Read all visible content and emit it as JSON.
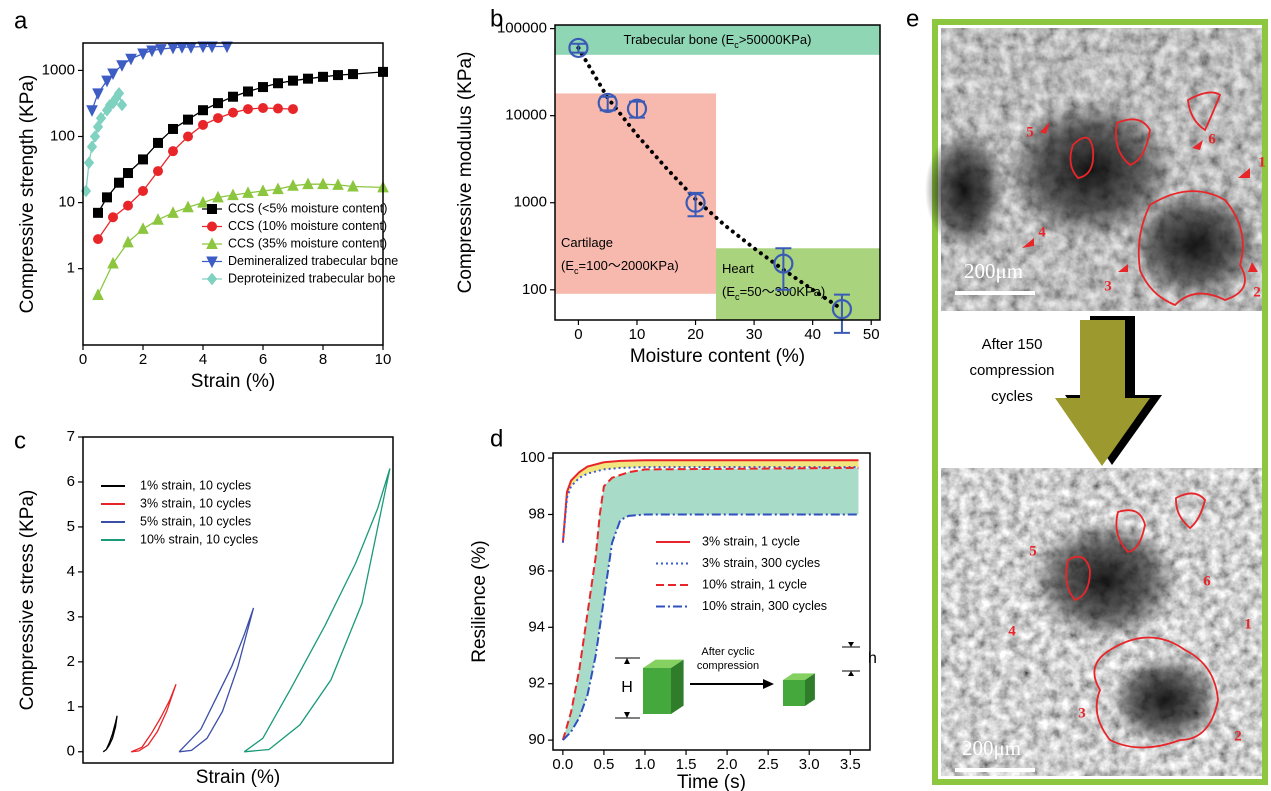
{
  "chart_data": [
    {
      "panel_label": "a",
      "type": "line",
      "x_label": "Strain (%)",
      "y_label": "Compressive strength (KPa)",
      "y_scale": "log",
      "xlim": [
        0,
        10
      ],
      "ylim": [
        0.07,
        2600
      ],
      "xticks": [
        0,
        2,
        4,
        6,
        8,
        10
      ],
      "yticks": [
        1,
        10,
        100,
        1000
      ],
      "legend": "lower right",
      "series": [
        {
          "name": "CCS (<5% moisture content)",
          "color": "#000000",
          "marker": "square",
          "x": [
            0.5,
            0.8,
            1.2,
            1.5,
            2,
            2.5,
            3,
            3.5,
            4,
            4.5,
            5,
            5.5,
            6,
            6.5,
            7,
            7.5,
            8,
            8.5,
            9,
            10
          ],
          "values": [
            7,
            12,
            20,
            28,
            45,
            80,
            130,
            180,
            250,
            320,
            400,
            480,
            560,
            640,
            700,
            750,
            800,
            850,
            880,
            950
          ]
        },
        {
          "name": "CCS (10% moisture content)",
          "color": "#e8262a",
          "marker": "circle",
          "x": [
            0.5,
            1,
            1.5,
            2,
            2.5,
            3,
            3.5,
            4,
            4.5,
            5,
            5.5,
            6,
            6.5,
            7
          ],
          "values": [
            2.8,
            6,
            9,
            15,
            30,
            60,
            100,
            150,
            190,
            230,
            260,
            270,
            265,
            260
          ]
        },
        {
          "name": "CCS (35% moisture content)",
          "color": "#8cc63f",
          "marker": "triangle",
          "x": [
            0.5,
            1,
            1.5,
            2,
            2.5,
            3,
            3.5,
            4,
            4.5,
            5,
            5.5,
            6,
            6.5,
            7,
            7.5,
            8,
            8.5,
            9,
            10
          ],
          "values": [
            0.4,
            1.2,
            2.5,
            4,
            5.5,
            7,
            8.5,
            10,
            12,
            13,
            14,
            15,
            16,
            18,
            19,
            19,
            18.5,
            17.5,
            17
          ]
        },
        {
          "name": "Demineralized trabecular bone",
          "color": "#3d5cc4",
          "marker": "triangle-down",
          "x": [
            0.3,
            0.5,
            0.8,
            1,
            1.3,
            1.6,
            2,
            2.3,
            2.6,
            3,
            3.3,
            3.6,
            4,
            4.3,
            4.8
          ],
          "values": [
            250,
            450,
            700,
            900,
            1200,
            1500,
            1800,
            2000,
            2100,
            2200,
            2250,
            2250,
            2300,
            2300,
            2300
          ]
        },
        {
          "name": "Deproteinized trabecular bone",
          "color": "#7fd1c0",
          "marker": "diamond",
          "x": [
            0.1,
            0.2,
            0.3,
            0.4,
            0.5,
            0.6,
            0.8,
            0.9,
            1,
            1.1,
            1.2,
            1.3
          ],
          "values": [
            15,
            40,
            70,
            100,
            140,
            190,
            250,
            300,
            320,
            380,
            450,
            300
          ]
        }
      ]
    },
    {
      "panel_label": "b",
      "type": "errorbar",
      "x_label": "Moisture content (%)",
      "y_label": "Compressive modulus (KPa)",
      "y_scale": "log",
      "xlim": [
        -4,
        51.5
      ],
      "ylim": [
        45,
        110000
      ],
      "xticks": [
        0,
        10,
        20,
        30,
        40,
        50
      ],
      "yticks": [
        100,
        1000,
        10000,
        100000
      ],
      "color": "#3a5bb5",
      "x": [
        0,
        5,
        10,
        20,
        35,
        45
      ],
      "values": [
        60000,
        14000,
        12000,
        1000,
        200,
        60
      ],
      "errors": [
        7000,
        2500,
        2500,
        300,
        100,
        28
      ],
      "fit": {
        "x": [
          0,
          5,
          10,
          15,
          20,
          25,
          30,
          35,
          40,
          45
        ],
        "values": [
          60000,
          16000,
          6000,
          2500,
          1100,
          550,
          300,
          170,
          100,
          60
        ]
      },
      "regions": [
        {
          "label_lines": [
            [
              "Trabecular bone (E",
              "c",
              ">50000KPa)"
            ]
          ],
          "xlim": [
            -4,
            51.5
          ],
          "ylim": [
            50000,
            110000
          ],
          "color": "#8fd6b5"
        },
        {
          "label_lines": [
            [
              "Cartilage"
            ],
            [
              "(E",
              "c",
              "=100～2000KPa)"
            ]
          ],
          "xlim": [
            -4,
            23.5
          ],
          "ylim": [
            90,
            18000
          ],
          "color": "#f7b9ae"
        },
        {
          "label_lines": [
            [
              "Heart"
            ],
            [
              "(E",
              "c",
              "=50～300KPa)"
            ]
          ],
          "xlim": [
            23.5,
            51.5
          ],
          "ylim": [
            45,
            300
          ],
          "color": "#a9d37c"
        }
      ]
    },
    {
      "panel_label": "c",
      "type": "line",
      "x_label": "Strain (%)",
      "y_label": "Compressive stress (KPa)",
      "xlim": [
        0,
        100
      ],
      "ylim": [
        -0.25,
        7
      ],
      "yticks": [
        0,
        1,
        2,
        3,
        4,
        5,
        6,
        7
      ],
      "legend": "upper left",
      "series": [
        {
          "name": "1% strain, 10 cycles",
          "color": "#000000",
          "x": [
            6.5,
            7.5,
            8.5,
            9.5,
            10.5,
            11,
            10.5,
            9.5,
            8.5,
            7.5,
            6.5
          ],
          "values": [
            0,
            0.05,
            0.15,
            0.3,
            0.55,
            0.8,
            0.65,
            0.4,
            0.2,
            0.05,
            0
          ]
        },
        {
          "name": "3% strain, 10 cycles",
          "color": "#e8262a",
          "x": [
            15.5,
            18,
            21,
            24,
            27,
            30,
            28,
            25,
            22,
            19,
            15.5
          ],
          "values": [
            0,
            0.02,
            0.15,
            0.45,
            0.9,
            1.5,
            1.15,
            0.75,
            0.4,
            0.1,
            0
          ]
        },
        {
          "name": "5% strain, 10 cycles",
          "color": "#3b4ea8",
          "x": [
            31,
            35,
            40,
            45,
            50,
            55,
            52,
            48,
            43,
            38,
            31
          ],
          "values": [
            0,
            0.03,
            0.3,
            0.9,
            1.9,
            3.2,
            2.6,
            1.9,
            1.2,
            0.5,
            0
          ]
        },
        {
          "name": "10% strain, 10 cycles",
          "color": "#1a9a78",
          "x": [
            52,
            60,
            70,
            80,
            90,
            99,
            95,
            88,
            78,
            67,
            58,
            52
          ],
          "values": [
            0,
            0.05,
            0.6,
            1.6,
            3.3,
            6.3,
            5.4,
            4.2,
            2.8,
            1.4,
            0.3,
            0
          ]
        }
      ]
    },
    {
      "panel_label": "d",
      "type": "line",
      "x_label": "Time (s)",
      "y_label": "Resilience (%)",
      "xlim": [
        -0.12,
        3.74
      ],
      "ylim": [
        89.65,
        100.18
      ],
      "xticks": [
        {
          "value": 0,
          "label": "0.0"
        },
        0.5,
        {
          "value": 1,
          "label": "1.0"
        },
        1.5,
        {
          "value": 2,
          "label": "2.0"
        },
        2.5,
        {
          "value": 3,
          "label": "3.0"
        },
        3.5
      ],
      "yticks": [
        90,
        92,
        94,
        96,
        98,
        100
      ],
      "legend": "center right",
      "inset_labels": [
        "H",
        "After cyclic",
        "compression",
        "h"
      ],
      "series": [
        {
          "name": "3% strain, 1 cycle",
          "color": "#e8262a",
          "line_style": "solid",
          "x": [
            0,
            0.05,
            0.1,
            0.2,
            0.3,
            0.5,
            0.7,
            1,
            3.6
          ],
          "values": [
            97,
            98.8,
            99.2,
            99.5,
            99.7,
            99.85,
            99.9,
            99.92,
            99.92
          ]
        },
        {
          "name": "3% strain, 300 cycles",
          "color": "#3b5bd1",
          "line_style": "dotted",
          "fill": "#f3e57e",
          "x": [
            0,
            0.05,
            0.1,
            0.2,
            0.3,
            0.5,
            0.7,
            1,
            3.6
          ],
          "values": [
            97,
            98.6,
            99,
            99.3,
            99.45,
            99.6,
            99.65,
            99.68,
            99.68
          ]
        },
        {
          "name": "10% strain, 1 cycle",
          "color": "#e8262a",
          "line_style": "dashed",
          "x": [
            0,
            0.1,
            0.2,
            0.3,
            0.4,
            0.45,
            0.5,
            0.6,
            0.8,
            1,
            3.6
          ],
          "values": [
            90,
            91,
            92.5,
            94.5,
            96.5,
            98,
            99,
            99.3,
            99.5,
            99.6,
            99.65
          ]
        },
        {
          "name": "10% strain, 300 cycles",
          "color": "#3050c0",
          "line_style": "dashdot",
          "fill": "#a8dcc8",
          "x": [
            0,
            0.1,
            0.2,
            0.3,
            0.4,
            0.5,
            0.6,
            0.7,
            0.8,
            1,
            3.6
          ],
          "values": [
            90,
            90.3,
            90.8,
            91.6,
            93,
            95,
            97,
            97.8,
            97.95,
            98,
            98
          ]
        }
      ]
    }
  ],
  "panel_e": {
    "panel_label": "e",
    "scale_bars": [
      "200μm",
      "200μm"
    ],
    "top_markers": [
      "1",
      "2",
      "3",
      "4",
      "5",
      "6"
    ],
    "bottom_markers": [
      "1",
      "2",
      "3",
      "4",
      "5",
      "6"
    ],
    "arrow_text": [
      "After 150",
      "compression",
      "cycles"
    ]
  }
}
